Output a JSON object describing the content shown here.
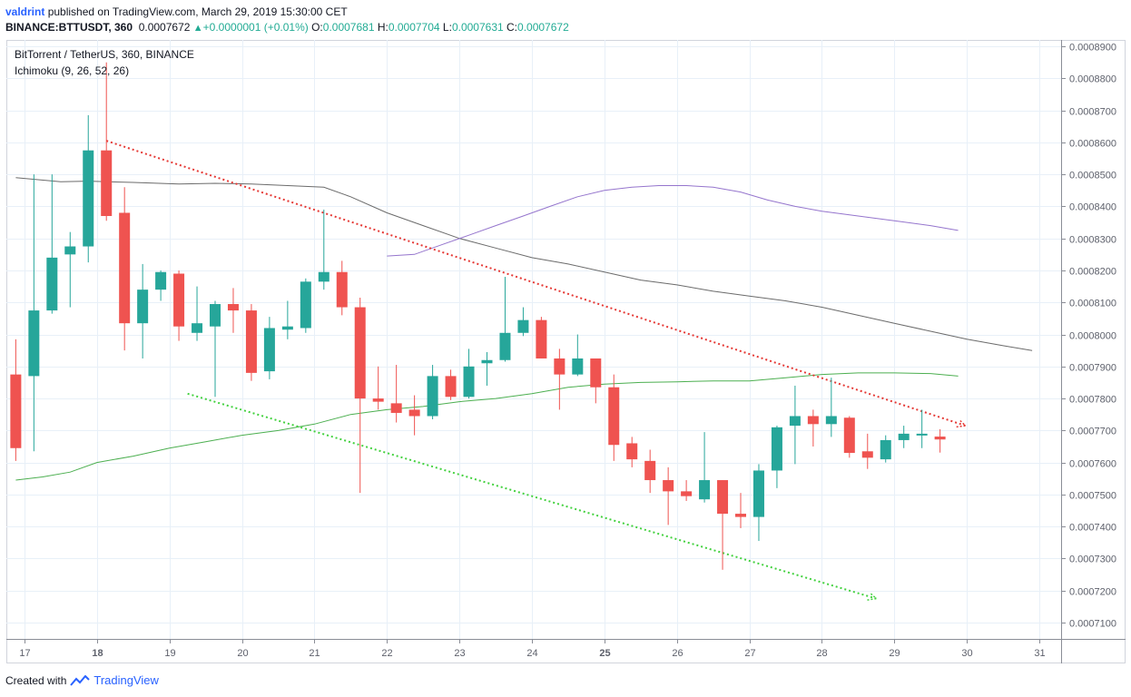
{
  "header": {
    "author": "valdrint",
    "published_text": "published on TradingView.com, March 29, 2019 15:30:00 CET",
    "symbol_full": "BINANCE:BTTUSDT, 360",
    "last_price": "0.0007672",
    "change": "+0.0000001 (+0.01%)",
    "open_label": "O:",
    "open": "0.0007681",
    "high_label": "H:",
    "high": "0.0007704",
    "low_label": "L:",
    "low": "0.0007631",
    "close_label": "C:",
    "close": "0.0007672"
  },
  "footer": {
    "created_with": "Created with",
    "brand": "TradingView"
  },
  "colors": {
    "up": "#26a69a",
    "down": "#ef5350",
    "trend_down": "#e53935",
    "trend_up": "#43d13f",
    "ichimoku_dark": "#6b6b6b",
    "ichimoku_purple": "#9575cd",
    "ichimoku_green": "#4caf50",
    "grid": "#e8f0f8",
    "axis": "#5d606b"
  },
  "chart_data": {
    "type": "candlestick",
    "title": "BitTorrent / TetherUS, 360, BINANCE",
    "indicator": "Ichimoku (9, 26, 52, 26)",
    "xlabel": "",
    "ylabel": "",
    "ylim": [
      0.0007049,
      0.000892
    ],
    "xlim": [
      16.75,
      31.3
    ],
    "x_ticks": [
      {
        "x": 17,
        "label": "17"
      },
      {
        "x": 18,
        "label": "18"
      },
      {
        "x": 19,
        "label": "19"
      },
      {
        "x": 20,
        "label": "20"
      },
      {
        "x": 21,
        "label": "21"
      },
      {
        "x": 22,
        "label": "22"
      },
      {
        "x": 23,
        "label": "23"
      },
      {
        "x": 24,
        "label": "24"
      },
      {
        "x": 25,
        "label": "25"
      },
      {
        "x": 26,
        "label": "26"
      },
      {
        "x": 27,
        "label": "27"
      },
      {
        "x": 28,
        "label": "28"
      },
      {
        "x": 29,
        "label": "29"
      },
      {
        "x": 30,
        "label": "30"
      },
      {
        "x": 31,
        "label": "31"
      }
    ],
    "y_ticks": [
      {
        "v": 0.00071,
        "label": "0.0007100"
      },
      {
        "v": 0.00072,
        "label": "0.0007200"
      },
      {
        "v": 0.00073,
        "label": "0.0007300"
      },
      {
        "v": 0.00074,
        "label": "0.0007400"
      },
      {
        "v": 0.00075,
        "label": "0.0007500"
      },
      {
        "v": 0.00076,
        "label": "0.0007600"
      },
      {
        "v": 0.00077,
        "label": "0.0007700"
      },
      {
        "v": 0.00078,
        "label": "0.0007800"
      },
      {
        "v": 0.00079,
        "label": "0.0007900"
      },
      {
        "v": 0.0008,
        "label": "0.0008000"
      },
      {
        "v": 0.00081,
        "label": "0.0008100"
      },
      {
        "v": 0.00082,
        "label": "0.0008200"
      },
      {
        "v": 0.00083,
        "label": "0.0008300"
      },
      {
        "v": 0.00084,
        "label": "0.0008400"
      },
      {
        "v": 0.00085,
        "label": "0.0008500"
      },
      {
        "v": 0.00086,
        "label": "0.0008600"
      },
      {
        "v": 0.00087,
        "label": "0.0008700"
      },
      {
        "v": 0.00088,
        "label": "0.0008800"
      },
      {
        "v": 0.00089,
        "label": "0.0008900"
      }
    ],
    "candles": [
      {
        "t": 16.88,
        "o": 0.0007875,
        "h": 0.0007985,
        "l": 0.0007605,
        "c": 0.0007645
      },
      {
        "t": 17.13,
        "o": 0.000787,
        "h": 0.00085,
        "l": 0.0007635,
        "c": 0.0008075
      },
      {
        "t": 17.38,
        "o": 0.0008075,
        "h": 0.00085,
        "l": 0.0008065,
        "c": 0.000824
      },
      {
        "t": 17.63,
        "o": 0.000825,
        "h": 0.000832,
        "l": 0.0008085,
        "c": 0.0008275
      },
      {
        "t": 17.88,
        "o": 0.0008275,
        "h": 0.0008685,
        "l": 0.0008225,
        "c": 0.0008575
      },
      {
        "t": 18.13,
        "o": 0.0008575,
        "h": 0.000885,
        "l": 0.0008355,
        "c": 0.000837
      },
      {
        "t": 18.38,
        "o": 0.000838,
        "h": 0.000846,
        "l": 0.000795,
        "c": 0.0008035
      },
      {
        "t": 18.63,
        "o": 0.0008035,
        "h": 0.000822,
        "l": 0.0007925,
        "c": 0.000814
      },
      {
        "t": 18.88,
        "o": 0.000814,
        "h": 0.00082,
        "l": 0.0008105,
        "c": 0.0008195
      },
      {
        "t": 19.13,
        "o": 0.000819,
        "h": 0.00082,
        "l": 0.000798,
        "c": 0.0008025
      },
      {
        "t": 19.38,
        "o": 0.0008005,
        "h": 0.000815,
        "l": 0.000798,
        "c": 0.0008035
      },
      {
        "t": 19.63,
        "o": 0.0008025,
        "h": 0.0008105,
        "l": 0.0007805,
        "c": 0.0008095
      },
      {
        "t": 19.88,
        "o": 0.0008095,
        "h": 0.0008145,
        "l": 0.0008005,
        "c": 0.0008075
      },
      {
        "t": 20.13,
        "o": 0.0008075,
        "h": 0.0008095,
        "l": 0.0007855,
        "c": 0.000788
      },
      {
        "t": 20.38,
        "o": 0.0007885,
        "h": 0.0008055,
        "l": 0.000786,
        "c": 0.000802
      },
      {
        "t": 20.63,
        "o": 0.0008015,
        "h": 0.0008105,
        "l": 0.0007985,
        "c": 0.0008025
      },
      {
        "t": 20.88,
        "o": 0.000802,
        "h": 0.0008175,
        "l": 0.0008005,
        "c": 0.0008165
      },
      {
        "t": 21.13,
        "o": 0.0008165,
        "h": 0.000839,
        "l": 0.000814,
        "c": 0.0008195
      },
      {
        "t": 21.38,
        "o": 0.0008195,
        "h": 0.000823,
        "l": 0.000806,
        "c": 0.0008085
      },
      {
        "t": 21.63,
        "o": 0.0008085,
        "h": 0.0008115,
        "l": 0.0007505,
        "c": 0.00078
      },
      {
        "t": 21.88,
        "o": 0.00078,
        "h": 0.00079,
        "l": 0.0007765,
        "c": 0.000779
      },
      {
        "t": 22.13,
        "o": 0.0007785,
        "h": 0.0007905,
        "l": 0.0007725,
        "c": 0.0007755
      },
      {
        "t": 22.38,
        "o": 0.0007765,
        "h": 0.000781,
        "l": 0.0007685,
        "c": 0.0007745
      },
      {
        "t": 22.63,
        "o": 0.0007745,
        "h": 0.0007905,
        "l": 0.0007735,
        "c": 0.000787
      },
      {
        "t": 22.88,
        "o": 0.000787,
        "h": 0.000789,
        "l": 0.0007795,
        "c": 0.0007805
      },
      {
        "t": 23.13,
        "o": 0.0007805,
        "h": 0.0007955,
        "l": 0.00078,
        "c": 0.00079
      },
      {
        "t": 23.38,
        "o": 0.000791,
        "h": 0.0007945,
        "l": 0.000784,
        "c": 0.000792
      },
      {
        "t": 23.63,
        "o": 0.000792,
        "h": 0.000818,
        "l": 0.0007915,
        "c": 0.0008005
      },
      {
        "t": 23.88,
        "o": 0.0008005,
        "h": 0.0008085,
        "l": 0.0007995,
        "c": 0.0008045
      },
      {
        "t": 24.13,
        "o": 0.0008045,
        "h": 0.0008055,
        "l": 0.0007925,
        "c": 0.0007925
      },
      {
        "t": 24.38,
        "o": 0.0007925,
        "h": 0.0007955,
        "l": 0.0007765,
        "c": 0.0007875
      },
      {
        "t": 24.63,
        "o": 0.0007875,
        "h": 0.0008,
        "l": 0.000787,
        "c": 0.0007925
      },
      {
        "t": 24.88,
        "o": 0.0007925,
        "h": 0.0007925,
        "l": 0.0007785,
        "c": 0.0007835
      },
      {
        "t": 25.13,
        "o": 0.0007835,
        "h": 0.0007875,
        "l": 0.0007605,
        "c": 0.0007655
      },
      {
        "t": 25.38,
        "o": 0.000766,
        "h": 0.000768,
        "l": 0.0007585,
        "c": 0.000761
      },
      {
        "t": 25.63,
        "o": 0.0007605,
        "h": 0.000764,
        "l": 0.0007505,
        "c": 0.0007545
      },
      {
        "t": 25.88,
        "o": 0.0007545,
        "h": 0.0007585,
        "l": 0.0007405,
        "c": 0.000751
      },
      {
        "t": 26.13,
        "o": 0.000751,
        "h": 0.0007545,
        "l": 0.000748,
        "c": 0.0007495
      },
      {
        "t": 26.38,
        "o": 0.0007485,
        "h": 0.0007695,
        "l": 0.0007475,
        "c": 0.0007545
      },
      {
        "t": 26.63,
        "o": 0.0007545,
        "h": 0.0007545,
        "l": 0.0007265,
        "c": 0.000744
      },
      {
        "t": 26.88,
        "o": 0.000744,
        "h": 0.0007505,
        "l": 0.0007395,
        "c": 0.000743
      },
      {
        "t": 27.13,
        "o": 0.000743,
        "h": 0.0007595,
        "l": 0.0007355,
        "c": 0.0007575
      },
      {
        "t": 27.38,
        "o": 0.0007575,
        "h": 0.0007715,
        "l": 0.000752,
        "c": 0.000771
      },
      {
        "t": 27.63,
        "o": 0.0007715,
        "h": 0.000784,
        "l": 0.0007595,
        "c": 0.0007745
      },
      {
        "t": 27.88,
        "o": 0.0007745,
        "h": 0.0007765,
        "l": 0.000765,
        "c": 0.000772
      },
      {
        "t": 28.13,
        "o": 0.000772,
        "h": 0.0007865,
        "l": 0.000768,
        "c": 0.0007745
      },
      {
        "t": 28.38,
        "o": 0.000774,
        "h": 0.0007745,
        "l": 0.0007615,
        "c": 0.000763
      },
      {
        "t": 28.63,
        "o": 0.0007635,
        "h": 0.000769,
        "l": 0.000758,
        "c": 0.0007615
      },
      {
        "t": 28.88,
        "o": 0.000761,
        "h": 0.0007685,
        "l": 0.00076,
        "c": 0.000767
      },
      {
        "t": 29.13,
        "o": 0.000767,
        "h": 0.0007715,
        "l": 0.0007645,
        "c": 0.000769
      },
      {
        "t": 29.38,
        "o": 0.0007685,
        "h": 0.0007765,
        "l": 0.0007645,
        "c": 0.000769
      },
      {
        "t": 29.63,
        "o": 0.0007681,
        "h": 0.0007704,
        "l": 0.0007631,
        "c": 0.0007672
      }
    ],
    "series": [
      {
        "name": "Ichimoku base (dark)",
        "points": [
          [
            16.88,
            0.000849
          ],
          [
            17.5,
            0.0008477
          ],
          [
            17.88,
            0.0008479
          ],
          [
            18.5,
            0.0008475
          ],
          [
            19.13,
            0.000847
          ],
          [
            19.63,
            0.0008472
          ],
          [
            20.13,
            0.000847
          ],
          [
            20.63,
            0.0008465
          ],
          [
            21.13,
            0.000846
          ],
          [
            21.5,
            0.000843
          ],
          [
            22.0,
            0.000838
          ],
          [
            22.5,
            0.000834
          ],
          [
            23.0,
            0.00083
          ],
          [
            23.5,
            0.000827
          ],
          [
            24.0,
            0.000824
          ],
          [
            24.5,
            0.000822
          ],
          [
            25.0,
            0.0008195
          ],
          [
            25.5,
            0.000817
          ],
          [
            26.0,
            0.0008155
          ],
          [
            26.5,
            0.0008135
          ],
          [
            27.0,
            0.000812
          ],
          [
            27.5,
            0.0008105
          ],
          [
            28.0,
            0.0008085
          ],
          [
            28.5,
            0.000806
          ],
          [
            29.0,
            0.0008035
          ],
          [
            29.5,
            0.000801
          ],
          [
            30.0,
            0.0007985
          ],
          [
            30.5,
            0.0007965
          ],
          [
            30.9,
            0.000795
          ]
        ]
      },
      {
        "name": "Ichimoku lagging (purple)",
        "points": [
          [
            22.0,
            0.0008245
          ],
          [
            22.38,
            0.000825
          ],
          [
            22.75,
            0.000828
          ],
          [
            23.13,
            0.000831
          ],
          [
            23.5,
            0.000834
          ],
          [
            23.88,
            0.000837
          ],
          [
            24.25,
            0.00084
          ],
          [
            24.63,
            0.000843
          ],
          [
            25.0,
            0.000845
          ],
          [
            25.38,
            0.000846
          ],
          [
            25.75,
            0.0008465
          ],
          [
            26.13,
            0.0008465
          ],
          [
            26.5,
            0.000846
          ],
          [
            26.88,
            0.0008445
          ],
          [
            27.25,
            0.000842
          ],
          [
            27.63,
            0.00084
          ],
          [
            28.0,
            0.0008385
          ],
          [
            28.5,
            0.000837
          ],
          [
            29.0,
            0.0008355
          ],
          [
            29.5,
            0.000834
          ],
          [
            29.88,
            0.0008325
          ]
        ]
      },
      {
        "name": "Ichimoku span (green)",
        "points": [
          [
            16.88,
            0.0007545
          ],
          [
            17.25,
            0.0007555
          ],
          [
            17.63,
            0.000757
          ],
          [
            18.0,
            0.00076
          ],
          [
            18.5,
            0.000762
          ],
          [
            19.0,
            0.0007645
          ],
          [
            19.5,
            0.0007665
          ],
          [
            20.0,
            0.0007685
          ],
          [
            20.5,
            0.00077
          ],
          [
            21.0,
            0.000772
          ],
          [
            21.5,
            0.000775
          ],
          [
            22.0,
            0.0007765
          ],
          [
            22.5,
            0.0007775
          ],
          [
            23.0,
            0.000779
          ],
          [
            23.5,
            0.00078
          ],
          [
            24.0,
            0.0007815
          ],
          [
            24.5,
            0.0007835
          ],
          [
            25.0,
            0.0007845
          ],
          [
            25.5,
            0.000785
          ],
          [
            26.0,
            0.0007852
          ],
          [
            26.5,
            0.0007855
          ],
          [
            27.0,
            0.0007855
          ],
          [
            27.5,
            0.0007865
          ],
          [
            28.0,
            0.0007875
          ],
          [
            28.5,
            0.000788
          ],
          [
            29.0,
            0.000788
          ],
          [
            29.5,
            0.0007878
          ],
          [
            29.88,
            0.000787
          ]
        ]
      }
    ],
    "trendlines": [
      {
        "name": "resistance",
        "color_key": "trend_down",
        "from": [
          18.13,
          0.0008605
        ],
        "to": [
          29.98,
          0.0007715
        ]
      },
      {
        "name": "support",
        "color_key": "trend_up",
        "from": [
          19.25,
          0.0007815
        ],
        "to": [
          28.75,
          0.0007175
        ]
      }
    ]
  }
}
